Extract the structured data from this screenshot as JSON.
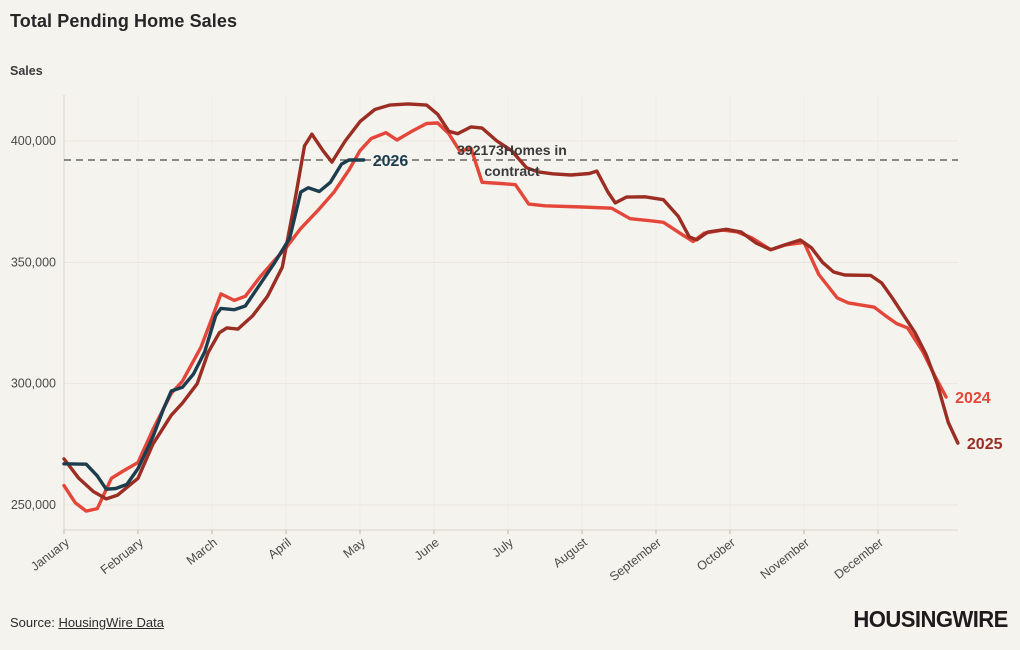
{
  "title": "Total Pending Home Sales",
  "y_axis_title": "Sales",
  "chart_data": {
    "type": "line",
    "title": "Total Pending Home Sales",
    "ylabel": "Sales",
    "x_axis": {
      "labels": [
        "January",
        "February",
        "March",
        "April",
        "May",
        "June",
        "July",
        "August",
        "September",
        "October",
        "November",
        "December"
      ]
    },
    "y_axis": {
      "ticks": [
        {
          "value": 250000,
          "label": "250,000"
        },
        {
          "value": 300000,
          "label": "300,000"
        },
        {
          "value": 350000,
          "label": "350,000"
        },
        {
          "value": 400000,
          "label": "400,000"
        }
      ],
      "range": [
        243000,
        418000
      ]
    },
    "reference_line": {
      "value": 392173,
      "label_lines": [
        "392173Homes in",
        "contract"
      ],
      "color": "#4a4a4a",
      "style": "dashed"
    },
    "legend_position": "inline-end-labels",
    "grid": true,
    "series": [
      {
        "name": "2024",
        "color": "#e5463a",
        "points": [
          [
            0.0,
            258000
          ],
          [
            0.15,
            251000
          ],
          [
            0.3,
            247500
          ],
          [
            0.45,
            248500
          ],
          [
            0.64,
            261000
          ],
          [
            0.8,
            264000
          ],
          [
            1.0,
            267500
          ],
          [
            1.2,
            281000
          ],
          [
            1.45,
            296000
          ],
          [
            1.6,
            301000
          ],
          [
            1.85,
            315000
          ],
          [
            2.0,
            327000
          ],
          [
            2.12,
            337000
          ],
          [
            2.3,
            334300
          ],
          [
            2.45,
            336000
          ],
          [
            2.65,
            344000
          ],
          [
            2.85,
            351000
          ],
          [
            3.0,
            356000
          ],
          [
            3.2,
            364000
          ],
          [
            3.45,
            372000
          ],
          [
            3.65,
            379000
          ],
          [
            3.85,
            388000
          ],
          [
            4.0,
            396000
          ],
          [
            4.15,
            401000
          ],
          [
            4.35,
            403400
          ],
          [
            4.5,
            400400
          ],
          [
            4.7,
            404000
          ],
          [
            4.9,
            407200
          ],
          [
            5.05,
            407400
          ],
          [
            5.2,
            403000
          ],
          [
            5.35,
            395800
          ],
          [
            5.5,
            397000
          ],
          [
            5.65,
            383000
          ],
          [
            5.9,
            382500
          ],
          [
            6.1,
            382000
          ],
          [
            6.28,
            374000
          ],
          [
            6.5,
            373300
          ],
          [
            7.0,
            372800
          ],
          [
            7.4,
            372300
          ],
          [
            7.65,
            368000
          ],
          [
            7.9,
            367200
          ],
          [
            8.1,
            366500
          ],
          [
            8.35,
            361500
          ],
          [
            8.5,
            358600
          ],
          [
            8.65,
            362000
          ],
          [
            8.9,
            363300
          ],
          [
            9.1,
            362500
          ],
          [
            9.3,
            360000
          ],
          [
            9.55,
            355200
          ],
          [
            9.75,
            357200
          ],
          [
            10.0,
            358200
          ],
          [
            10.2,
            345000
          ],
          [
            10.45,
            335300
          ],
          [
            10.6,
            333300
          ],
          [
            10.95,
            331500
          ],
          [
            11.1,
            328000
          ],
          [
            11.25,
            324800
          ],
          [
            11.4,
            323000
          ],
          [
            11.6,
            313500
          ],
          [
            11.78,
            302500
          ],
          [
            11.92,
            294500
          ]
        ]
      },
      {
        "name": "2025",
        "color": "#9b2d23",
        "points": [
          [
            0.0,
            269000
          ],
          [
            0.2,
            261000
          ],
          [
            0.4,
            255500
          ],
          [
            0.57,
            252500
          ],
          [
            0.72,
            254000
          ],
          [
            1.0,
            261000
          ],
          [
            1.2,
            275000
          ],
          [
            1.45,
            287000
          ],
          [
            1.6,
            292000
          ],
          [
            1.8,
            300000
          ],
          [
            1.95,
            313000
          ],
          [
            2.1,
            321000
          ],
          [
            2.2,
            323000
          ],
          [
            2.35,
            322500
          ],
          [
            2.55,
            328000
          ],
          [
            2.75,
            336000
          ],
          [
            2.95,
            348000
          ],
          [
            3.1,
            372000
          ],
          [
            3.25,
            398000
          ],
          [
            3.35,
            402800
          ],
          [
            3.5,
            396000
          ],
          [
            3.62,
            391300
          ],
          [
            3.8,
            400000
          ],
          [
            4.0,
            408000
          ],
          [
            4.2,
            413000
          ],
          [
            4.4,
            414800
          ],
          [
            4.65,
            415300
          ],
          [
            4.9,
            414800
          ],
          [
            5.05,
            411000
          ],
          [
            5.2,
            404000
          ],
          [
            5.32,
            403000
          ],
          [
            5.5,
            405800
          ],
          [
            5.65,
            405300
          ],
          [
            5.85,
            400000
          ],
          [
            6.05,
            396000
          ],
          [
            6.25,
            389000
          ],
          [
            6.4,
            387300
          ],
          [
            6.6,
            386500
          ],
          [
            6.85,
            386000
          ],
          [
            7.1,
            386600
          ],
          [
            7.2,
            387600
          ],
          [
            7.35,
            379000
          ],
          [
            7.45,
            374500
          ],
          [
            7.6,
            376900
          ],
          [
            7.85,
            377000
          ],
          [
            8.1,
            375800
          ],
          [
            8.3,
            369000
          ],
          [
            8.45,
            360500
          ],
          [
            8.55,
            359300
          ],
          [
            8.7,
            362500
          ],
          [
            8.95,
            363600
          ],
          [
            9.15,
            362500
          ],
          [
            9.35,
            358000
          ],
          [
            9.55,
            355200
          ],
          [
            9.75,
            357300
          ],
          [
            9.95,
            359200
          ],
          [
            10.1,
            356000
          ],
          [
            10.25,
            350000
          ],
          [
            10.4,
            346000
          ],
          [
            10.55,
            344800
          ],
          [
            10.9,
            344600
          ],
          [
            11.05,
            341500
          ],
          [
            11.2,
            335000
          ],
          [
            11.35,
            328000
          ],
          [
            11.5,
            321000
          ],
          [
            11.65,
            312000
          ],
          [
            11.8,
            300000
          ],
          [
            11.95,
            284000
          ],
          [
            12.08,
            275500
          ]
        ]
      },
      {
        "name": "2026",
        "color": "#1c3d4d",
        "points": [
          [
            0.0,
            267000
          ],
          [
            0.3,
            266800
          ],
          [
            0.45,
            262000
          ],
          [
            0.57,
            256500
          ],
          [
            0.7,
            256800
          ],
          [
            0.85,
            258500
          ],
          [
            1.0,
            265000
          ],
          [
            1.2,
            278000
          ],
          [
            1.35,
            290000
          ],
          [
            1.45,
            297000
          ],
          [
            1.6,
            298500
          ],
          [
            1.75,
            304000
          ],
          [
            1.9,
            313000
          ],
          [
            2.05,
            328000
          ],
          [
            2.12,
            331000
          ],
          [
            2.3,
            330500
          ],
          [
            2.45,
            332000
          ],
          [
            2.65,
            341000
          ],
          [
            2.85,
            350000
          ],
          [
            3.05,
            360000
          ],
          [
            3.2,
            379000
          ],
          [
            3.3,
            380700
          ],
          [
            3.45,
            379200
          ],
          [
            3.6,
            383000
          ],
          [
            3.75,
            390500
          ],
          [
            3.85,
            392173
          ],
          [
            4.05,
            392173
          ]
        ]
      }
    ]
  },
  "footer": {
    "source_prefix": "Source:",
    "source_link_text": "HousingWire Data",
    "logo_text": "HOUSINGWIRE"
  },
  "theme": {
    "background": "#f5f3ee",
    "grid": "#e9e6df",
    "grid_vertical": "#efede6",
    "axis": "#d8d4ca",
    "tick": "#b9b5ac",
    "text": "#3a3a3a",
    "annotation_text": "#3a3a3a"
  }
}
